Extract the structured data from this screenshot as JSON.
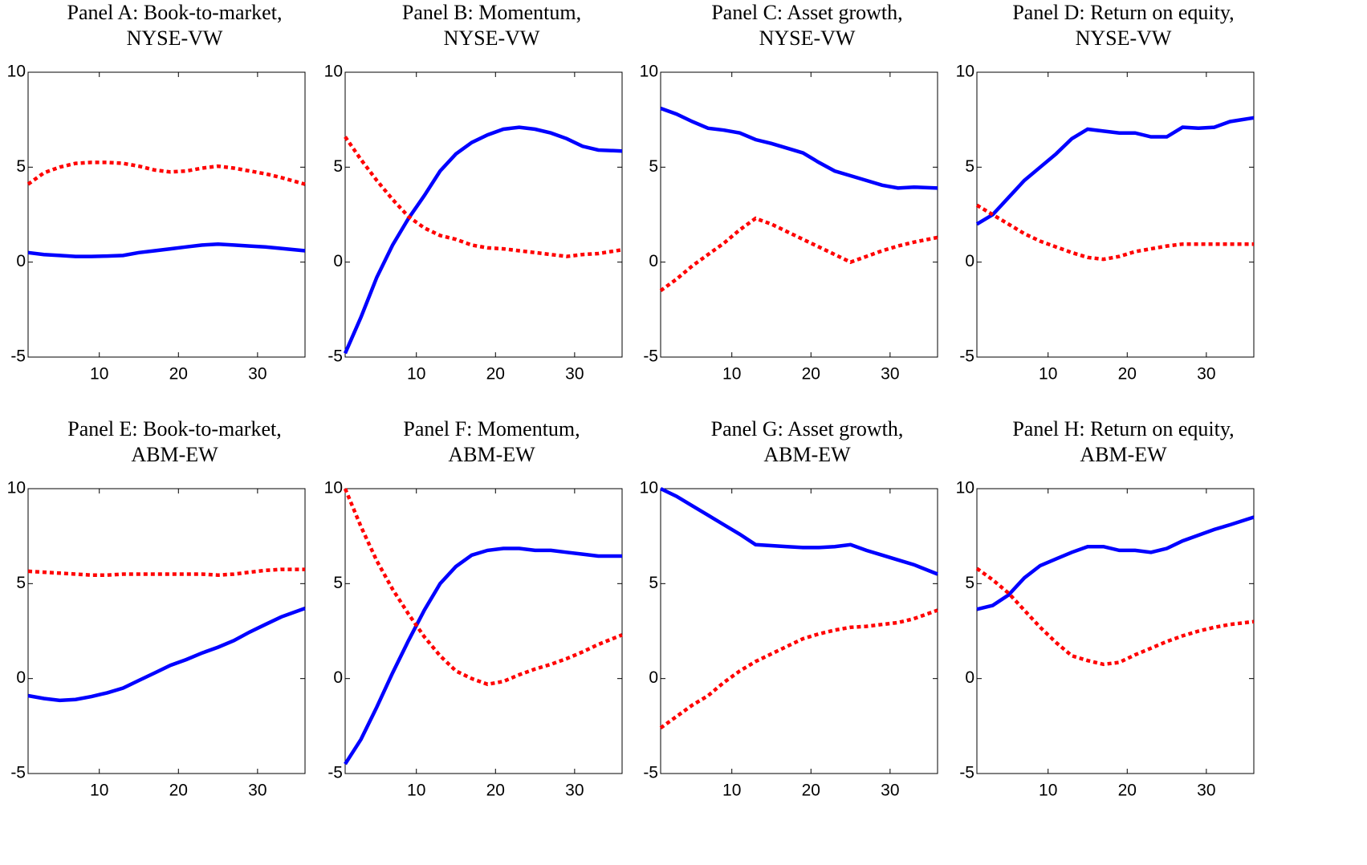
{
  "chart_data": [
    {
      "type": "line",
      "title": "Panel A: Book-to-market,",
      "subtitle": "NYSE-VW",
      "x": [
        1,
        3,
        5,
        7,
        9,
        11,
        13,
        15,
        17,
        19,
        21,
        23,
        25,
        27,
        29,
        31,
        33,
        36
      ],
      "xlim": [
        1,
        36
      ],
      "xticks": [
        10,
        20,
        30
      ],
      "ylim": [
        -5,
        10
      ],
      "yticks": [
        -5,
        0,
        5,
        10
      ],
      "series": [
        {
          "color": "#0000ff",
          "style": "solid",
          "values": [
            0.5,
            0.4,
            0.35,
            0.3,
            0.3,
            0.32,
            0.35,
            0.5,
            0.6,
            0.7,
            0.8,
            0.9,
            0.95,
            0.9,
            0.85,
            0.8,
            0.72,
            0.6
          ]
        },
        {
          "color": "#ff0000",
          "style": "dotted",
          "values": [
            4.1,
            4.7,
            5.0,
            5.2,
            5.25,
            5.25,
            5.2,
            5.05,
            4.85,
            4.75,
            4.8,
            4.95,
            5.05,
            4.95,
            4.8,
            4.65,
            4.45,
            4.1
          ]
        }
      ]
    },
    {
      "type": "line",
      "title": "Panel B: Momentum,",
      "subtitle": "NYSE-VW",
      "x": [
        1,
        3,
        5,
        7,
        9,
        11,
        13,
        15,
        17,
        19,
        21,
        23,
        25,
        27,
        29,
        31,
        33,
        36
      ],
      "xlim": [
        1,
        36
      ],
      "xticks": [
        10,
        20,
        30
      ],
      "ylim": [
        -5,
        10
      ],
      "yticks": [
        -5,
        0,
        5,
        10
      ],
      "series": [
        {
          "color": "#0000ff",
          "style": "solid",
          "values": [
            -4.8,
            -2.9,
            -0.8,
            0.9,
            2.3,
            3.5,
            4.8,
            5.7,
            6.3,
            6.7,
            7.0,
            7.1,
            7.0,
            6.8,
            6.5,
            6.1,
            5.9,
            5.85
          ]
        },
        {
          "color": "#ff0000",
          "style": "dotted",
          "values": [
            6.6,
            5.4,
            4.3,
            3.3,
            2.4,
            1.8,
            1.4,
            1.2,
            0.9,
            0.75,
            0.7,
            0.6,
            0.5,
            0.4,
            0.3,
            0.4,
            0.45,
            0.65
          ]
        }
      ]
    },
    {
      "type": "line",
      "title": "Panel C: Asset growth,",
      "subtitle": "NYSE-VW",
      "x": [
        1,
        3,
        5,
        7,
        9,
        11,
        13,
        15,
        17,
        19,
        21,
        23,
        25,
        27,
        29,
        31,
        33,
        36
      ],
      "xlim": [
        1,
        36
      ],
      "xticks": [
        10,
        20,
        30
      ],
      "ylim": [
        -5,
        10
      ],
      "yticks": [
        -5,
        0,
        5,
        10
      ],
      "series": [
        {
          "color": "#0000ff",
          "style": "solid",
          "values": [
            8.1,
            7.8,
            7.4,
            7.05,
            6.95,
            6.8,
            6.45,
            6.25,
            6.0,
            5.75,
            5.25,
            4.8,
            4.55,
            4.3,
            4.05,
            3.9,
            3.95,
            3.9
          ]
        },
        {
          "color": "#ff0000",
          "style": "dotted",
          "values": [
            -1.5,
            -0.9,
            -0.2,
            0.4,
            1.0,
            1.7,
            2.3,
            2.0,
            1.6,
            1.2,
            0.8,
            0.4,
            0.0,
            0.3,
            0.6,
            0.85,
            1.05,
            1.3
          ]
        }
      ]
    },
    {
      "type": "line",
      "title": "Panel D: Return on equity,",
      "subtitle": "NYSE-VW",
      "x": [
        1,
        3,
        5,
        7,
        9,
        11,
        13,
        15,
        17,
        19,
        21,
        23,
        25,
        27,
        29,
        31,
        33,
        36
      ],
      "xlim": [
        1,
        36
      ],
      "xticks": [
        10,
        20,
        30
      ],
      "ylim": [
        -5,
        10
      ],
      "yticks": [
        -5,
        0,
        5,
        10
      ],
      "series": [
        {
          "color": "#0000ff",
          "style": "solid",
          "values": [
            2.0,
            2.5,
            3.4,
            4.3,
            5.0,
            5.7,
            6.5,
            7.0,
            6.9,
            6.8,
            6.8,
            6.6,
            6.6,
            7.1,
            7.05,
            7.1,
            7.4,
            7.6
          ]
        },
        {
          "color": "#ff0000",
          "style": "dotted",
          "values": [
            3.0,
            2.5,
            2.0,
            1.5,
            1.1,
            0.8,
            0.5,
            0.25,
            0.15,
            0.3,
            0.55,
            0.7,
            0.85,
            0.95,
            0.95,
            0.95,
            0.95,
            0.95
          ]
        }
      ]
    },
    {
      "type": "line",
      "title": "Panel E: Book-to-market,",
      "subtitle": "ABM-EW",
      "x": [
        1,
        3,
        5,
        7,
        9,
        11,
        13,
        15,
        17,
        19,
        21,
        23,
        25,
        27,
        29,
        31,
        33,
        36
      ],
      "xlim": [
        1,
        36
      ],
      "xticks": [
        10,
        20,
        30
      ],
      "ylim": [
        -5,
        10
      ],
      "yticks": [
        -5,
        0,
        5,
        10
      ],
      "series": [
        {
          "color": "#0000ff",
          "style": "solid",
          "values": [
            -0.9,
            -1.05,
            -1.15,
            -1.1,
            -0.95,
            -0.75,
            -0.5,
            -0.1,
            0.3,
            0.7,
            1.0,
            1.35,
            1.65,
            2.0,
            2.45,
            2.85,
            3.25,
            3.7
          ]
        },
        {
          "color": "#ff0000",
          "style": "dotted",
          "values": [
            5.65,
            5.6,
            5.55,
            5.5,
            5.45,
            5.45,
            5.5,
            5.5,
            5.5,
            5.5,
            5.5,
            5.5,
            5.45,
            5.5,
            5.6,
            5.7,
            5.75,
            5.75
          ]
        }
      ]
    },
    {
      "type": "line",
      "title": "Panel F: Momentum,",
      "subtitle": "ABM-EW",
      "x": [
        1,
        3,
        5,
        7,
        9,
        11,
        13,
        15,
        17,
        19,
        21,
        23,
        25,
        27,
        29,
        31,
        33,
        36
      ],
      "xlim": [
        1,
        36
      ],
      "xticks": [
        10,
        20,
        30
      ],
      "ylim": [
        -5,
        10
      ],
      "yticks": [
        -5,
        0,
        5,
        10
      ],
      "series": [
        {
          "color": "#0000ff",
          "style": "solid",
          "values": [
            -4.5,
            -3.2,
            -1.5,
            0.3,
            2.0,
            3.6,
            5.0,
            5.9,
            6.5,
            6.75,
            6.85,
            6.85,
            6.75,
            6.75,
            6.65,
            6.55,
            6.45,
            6.45
          ]
        },
        {
          "color": "#ff0000",
          "style": "dotted",
          "values": [
            10.0,
            8.0,
            6.2,
            4.7,
            3.4,
            2.2,
            1.2,
            0.4,
            0.0,
            -0.3,
            -0.15,
            0.2,
            0.5,
            0.75,
            1.05,
            1.4,
            1.8,
            2.3
          ]
        }
      ]
    },
    {
      "type": "line",
      "title": "Panel G: Asset growth,",
      "subtitle": "ABM-EW",
      "x": [
        1,
        3,
        5,
        7,
        9,
        11,
        13,
        15,
        17,
        19,
        21,
        23,
        25,
        27,
        29,
        31,
        33,
        36
      ],
      "xlim": [
        1,
        36
      ],
      "xticks": [
        10,
        20,
        30
      ],
      "ylim": [
        -5,
        10
      ],
      "yticks": [
        -5,
        0,
        5,
        10
      ],
      "series": [
        {
          "color": "#0000ff",
          "style": "solid",
          "values": [
            10.0,
            9.6,
            9.1,
            8.6,
            8.1,
            7.6,
            7.05,
            7.0,
            6.95,
            6.9,
            6.9,
            6.95,
            7.05,
            6.75,
            6.5,
            6.25,
            6.0,
            5.5
          ]
        },
        {
          "color": "#ff0000",
          "style": "dotted",
          "values": [
            -2.6,
            -2.0,
            -1.4,
            -0.9,
            -0.2,
            0.4,
            0.9,
            1.3,
            1.7,
            2.1,
            2.35,
            2.55,
            2.7,
            2.75,
            2.85,
            2.95,
            3.15,
            3.6
          ]
        }
      ]
    },
    {
      "type": "line",
      "title": "Panel H: Return on equity,",
      "subtitle": "ABM-EW",
      "x": [
        1,
        3,
        5,
        7,
        9,
        11,
        13,
        15,
        17,
        19,
        21,
        23,
        25,
        27,
        29,
        31,
        33,
        36
      ],
      "xlim": [
        1,
        36
      ],
      "xticks": [
        10,
        20,
        30
      ],
      "ylim": [
        -5,
        10
      ],
      "yticks": [
        -5,
        0,
        5,
        10
      ],
      "series": [
        {
          "color": "#0000ff",
          "style": "solid",
          "values": [
            3.65,
            3.85,
            4.4,
            5.3,
            5.95,
            6.3,
            6.65,
            6.95,
            6.95,
            6.75,
            6.75,
            6.65,
            6.85,
            7.25,
            7.55,
            7.85,
            8.1,
            8.5
          ]
        },
        {
          "color": "#ff0000",
          "style": "dotted",
          "values": [
            5.8,
            5.2,
            4.5,
            3.6,
            2.7,
            1.9,
            1.2,
            0.95,
            0.75,
            0.85,
            1.25,
            1.6,
            1.95,
            2.25,
            2.5,
            2.7,
            2.85,
            3.0
          ]
        }
      ]
    }
  ]
}
